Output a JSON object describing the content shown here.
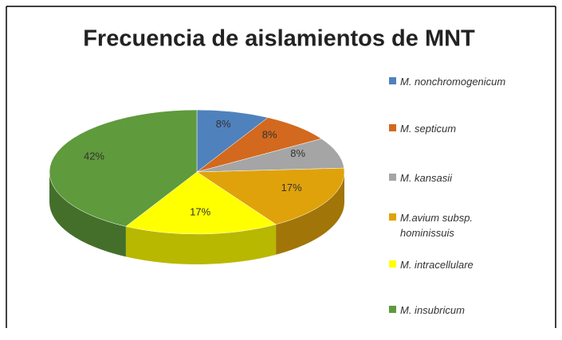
{
  "chart_data": {
    "type": "pie3d",
    "title": "Frecuencia de aislamientos de MNT",
    "categories": [
      "M. nonchromogenicum",
      "M. septicum",
      "M. kansasii",
      "M.avium subsp. hominissuis",
      "M. intracellulare",
      "M. insubricum"
    ],
    "values": [
      8,
      8,
      8,
      17,
      17,
      42
    ],
    "value_labels": [
      "8%",
      "8%",
      "8%",
      "17%",
      "17%",
      "42%"
    ],
    "colors": [
      "#4f81bd",
      "#d2691e",
      "#a5a5a5",
      "#e0a20a",
      "#ffff00",
      "#5f9a3c"
    ]
  }
}
